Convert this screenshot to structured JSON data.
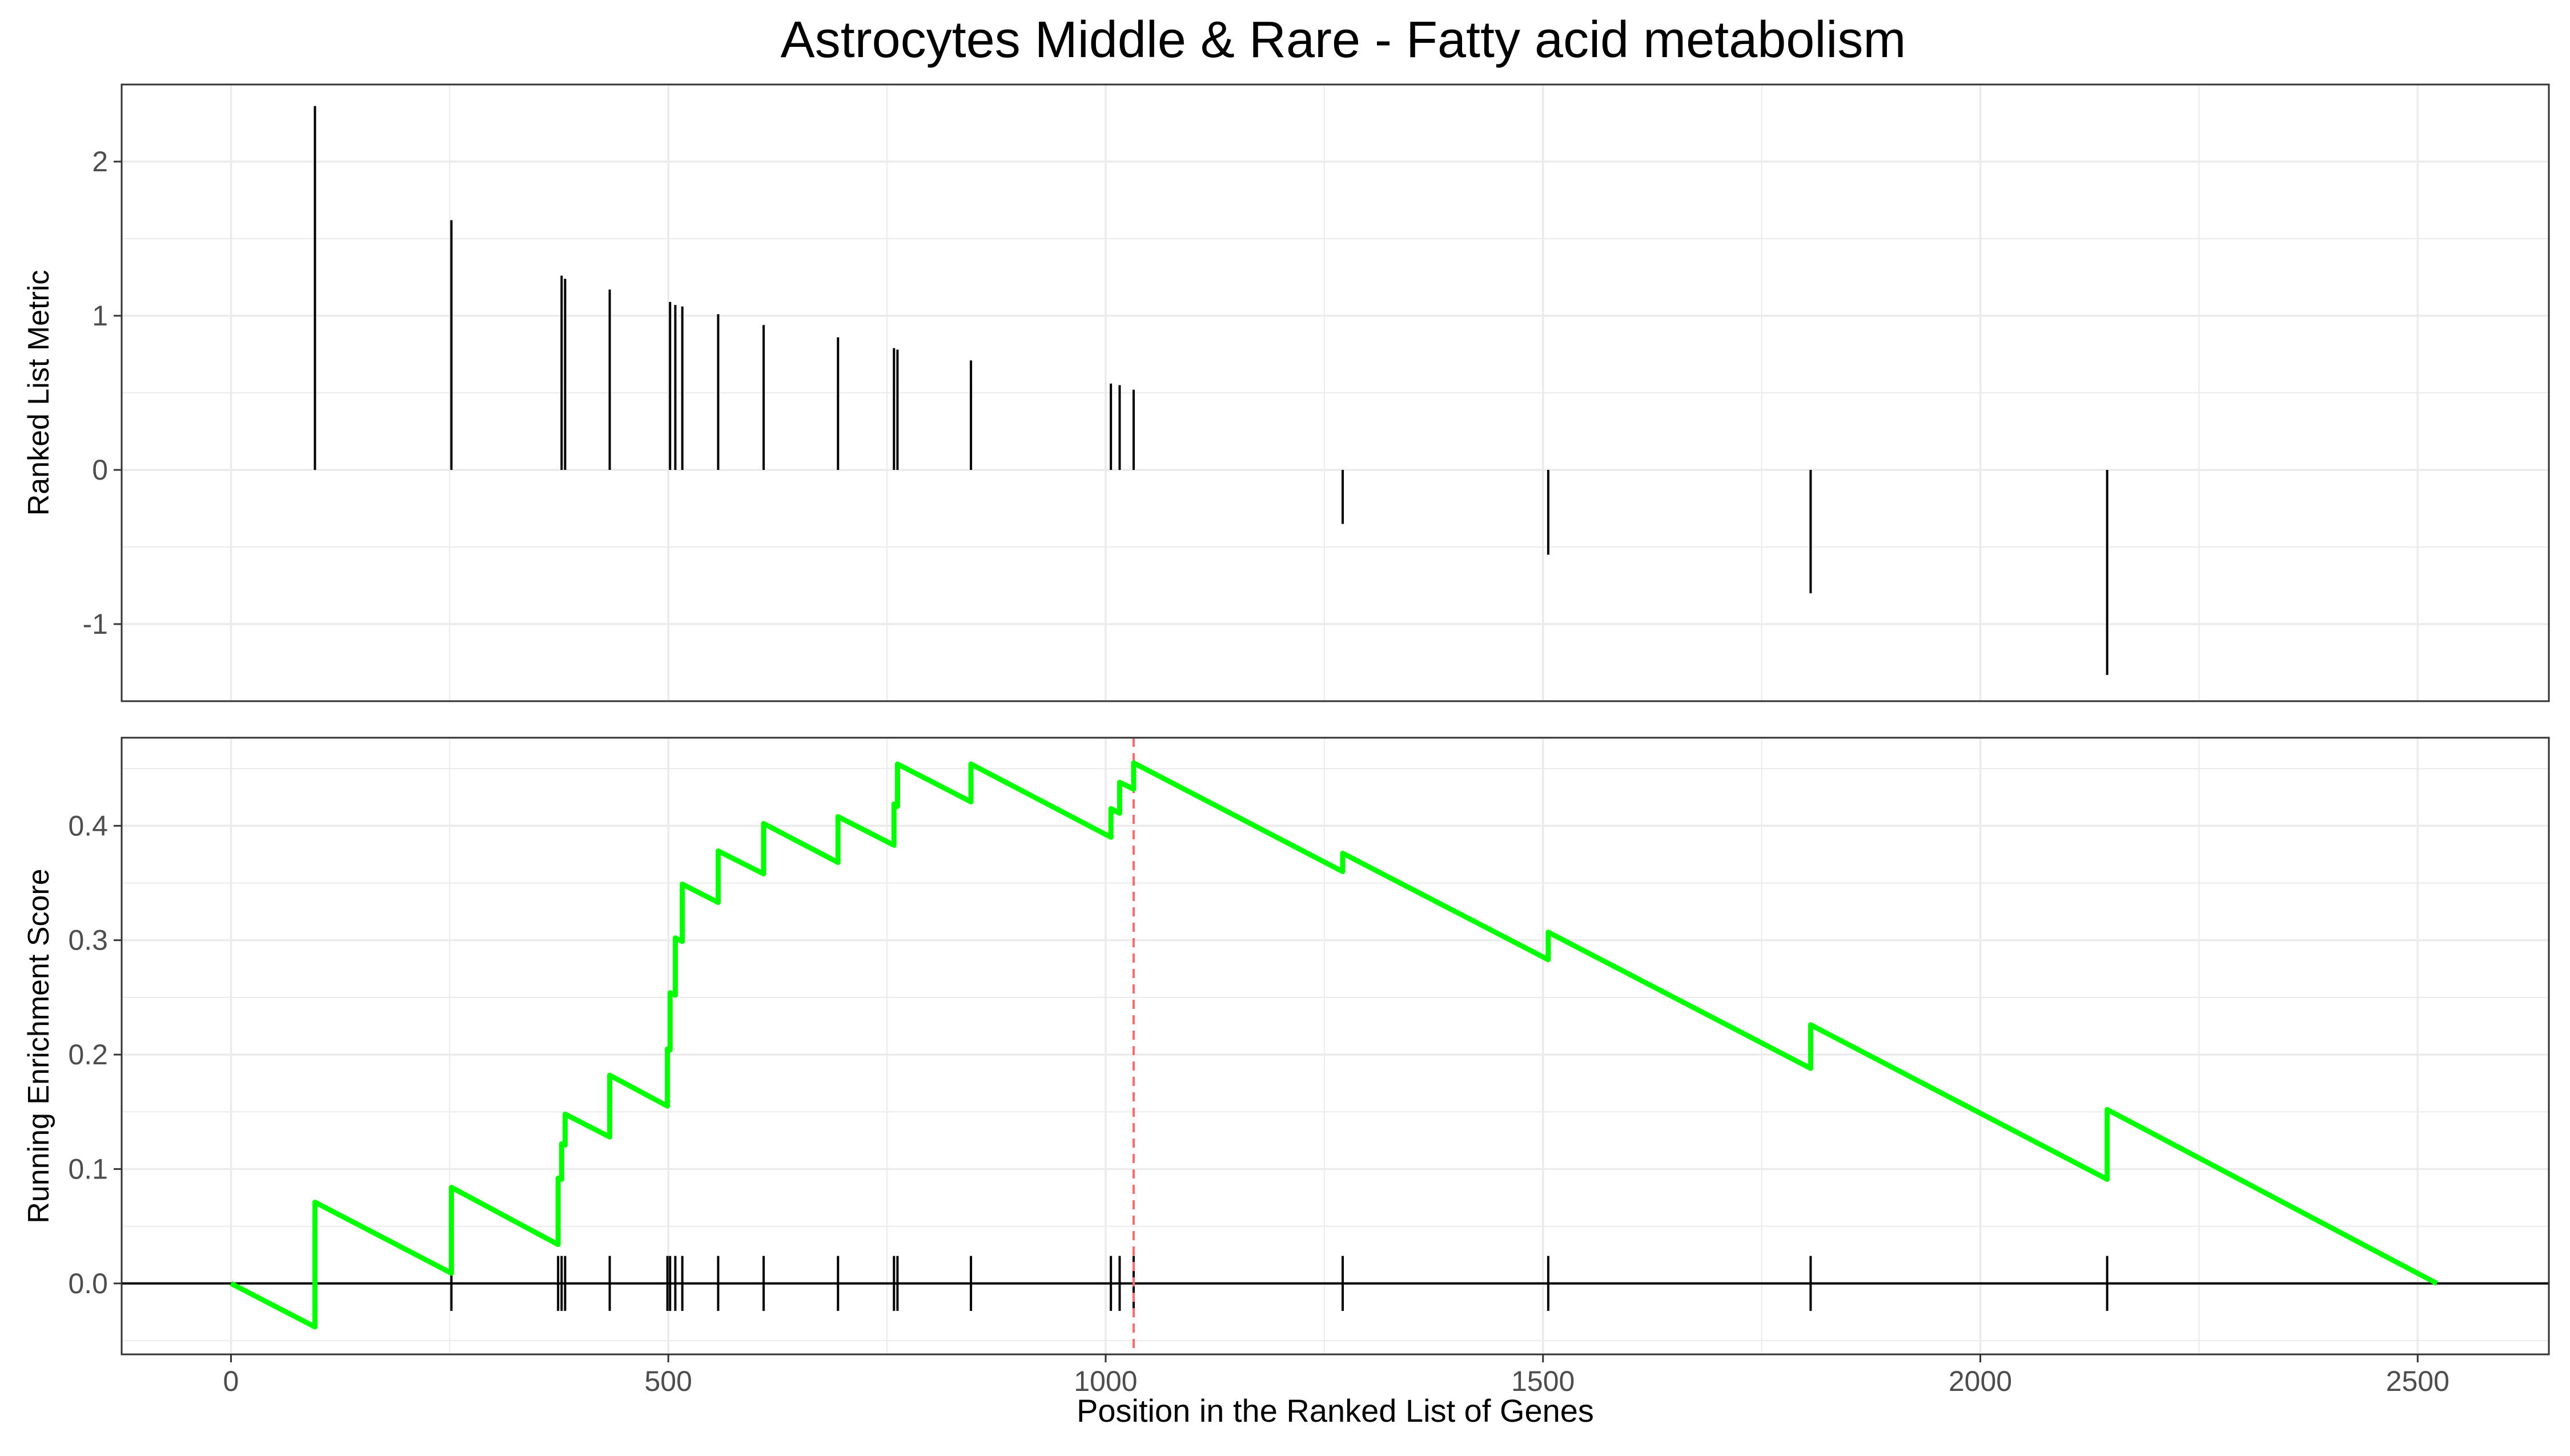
{
  "chart_data": {
    "type": "line",
    "title": "Astrocytes Middle & Rare - Fatty acid metabolism",
    "xlabel": "Position in the Ranked List of Genes",
    "xlim": [
      -125,
      2650
    ],
    "xticks": [
      0,
      500,
      1000,
      1500,
      2000,
      2500
    ],
    "xtick_labels": [
      "0",
      "500",
      "1000",
      "1500",
      "2000",
      "2500"
    ],
    "grid": true,
    "colors": {
      "running_score": "#00ff00",
      "leading_edge_line": "#ff6b6b",
      "bars": "#000000",
      "grid": "#ebebeb",
      "panel_border": "#333333"
    },
    "top_panel": {
      "ylabel": "Ranked List Metric",
      "ylim": [
        -1.5,
        2.5
      ],
      "yticks": [
        -1,
        0,
        1,
        2
      ],
      "ytick_labels": [
        "-1",
        "0",
        "1",
        "2"
      ],
      "ranked_metric": {
        "positions": [
          96,
          252,
          378,
          382,
          433,
          502,
          508,
          516,
          557,
          609,
          694,
          758,
          762,
          846,
          1006,
          1016,
          1032,
          1271,
          1506,
          1806,
          2145
        ],
        "values": [
          2.36,
          1.62,
          1.26,
          1.24,
          1.17,
          1.09,
          1.07,
          1.06,
          1.01,
          0.94,
          0.86,
          0.79,
          0.78,
          0.71,
          0.56,
          0.55,
          0.52,
          -0.35,
          -0.55,
          -0.8,
          -1.33
        ]
      }
    },
    "bottom_panel": {
      "ylabel": "Running Enrichment Score",
      "ylim": [
        -0.062,
        0.477
      ],
      "yticks": [
        0.0,
        0.1,
        0.2,
        0.3,
        0.4
      ],
      "ytick_labels": [
        "0.0",
        "0.1",
        "0.2",
        "0.3",
        "0.4"
      ],
      "hits": [
        96,
        252,
        374,
        378,
        382,
        433,
        499,
        502,
        508,
        516,
        557,
        609,
        694,
        758,
        762,
        846,
        1006,
        1016,
        1032,
        1271,
        1506,
        1806,
        2145
      ],
      "max_es_position": 1032,
      "running_es": {
        "x": [
          0,
          96,
          96,
          252,
          252,
          374,
          374,
          378,
          378,
          382,
          382,
          433,
          433,
          499,
          499,
          502,
          502,
          508,
          508,
          516,
          516,
          557,
          557,
          609,
          609,
          694,
          694,
          758,
          758,
          762,
          762,
          846,
          846,
          1006,
          1006,
          1016,
          1016,
          1032,
          1032,
          1271,
          1271,
          1506,
          1506,
          1806,
          1806,
          2145,
          2145,
          2522
        ],
        "y": [
          0.0,
          -0.038,
          0.071,
          0.009,
          0.084,
          0.034,
          0.092,
          0.091,
          0.122,
          0.121,
          0.148,
          0.128,
          0.182,
          0.155,
          0.205,
          0.204,
          0.254,
          0.252,
          0.302,
          0.299,
          0.349,
          0.333,
          0.378,
          0.358,
          0.402,
          0.368,
          0.408,
          0.383,
          0.419,
          0.417,
          0.454,
          0.421,
          0.454,
          0.39,
          0.415,
          0.411,
          0.438,
          0.432,
          0.455,
          0.36,
          0.376,
          0.283,
          0.307,
          0.188,
          0.226,
          0.091,
          0.152,
          0.0
        ]
      }
    }
  }
}
